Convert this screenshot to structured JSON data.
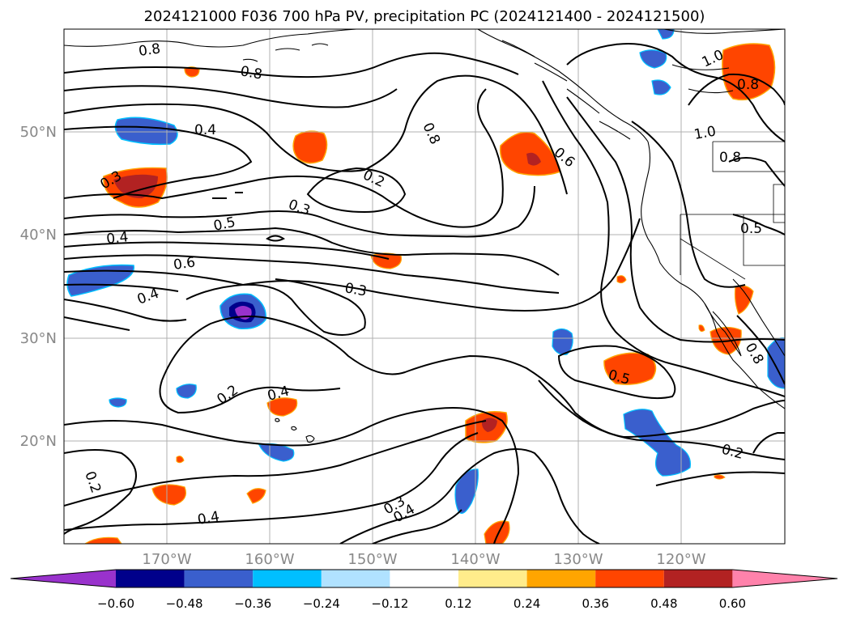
{
  "title": "2024121000 F036 700 hPa PV, precipitation PC (2024121400 - 2024121500)",
  "axes": {
    "lon_ticks": [
      "170°W",
      "160°W",
      "150°W",
      "140°W",
      "130°W",
      "120°W"
    ],
    "lat_ticks": [
      "20°N",
      "30°N",
      "40°N",
      "50°N"
    ]
  },
  "colorbar": {
    "ticks": [
      "−0.60",
      "−0.48",
      "−0.36",
      "−0.24",
      "−0.12",
      "0.12",
      "0.24",
      "0.36",
      "0.48",
      "0.60"
    ],
    "colors": [
      "#9932CC",
      "#00008B",
      "#3A5FCD",
      "#00BFFF",
      "#B0E2FF",
      "#FFFFFF",
      "#FFEC8B",
      "#FFA500",
      "#FF4500",
      "#B22222",
      "#FF82AB"
    ]
  },
  "contour_labels": [
    "0.8",
    "0.8",
    "0.4",
    "0.3",
    "0.2",
    "0.3",
    "0.5",
    "0.4",
    "0.6",
    "0.4",
    "0.3",
    "0.8",
    "0.6",
    "1.0",
    "0.8",
    "1.0",
    "0.8",
    "0.5",
    "0.5",
    "0.8",
    "0.2",
    "0.4",
    "0.2",
    "0.3",
    "0.4",
    "0.2",
    "0.4"
  ]
}
